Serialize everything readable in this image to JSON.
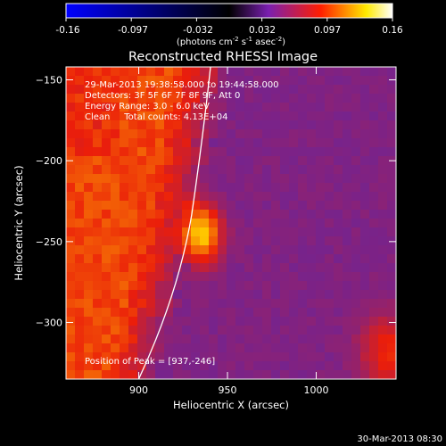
{
  "colorbar": {
    "ticks": [
      "-0.16",
      "-0.097",
      "-0.032",
      "0.032",
      "0.097",
      "0.16"
    ],
    "unit_text": "(photons cm",
    "unit_sup1": "-2",
    "unit_mid": " s",
    "unit_sup2": "-1",
    "unit_mid2": " asec",
    "unit_sup3": "-2",
    "unit_end": ")",
    "colors": [
      "#0000ff",
      "#000000",
      "#8b2fd1",
      "#ff1e00",
      "#ffea00",
      "#ffffff"
    ]
  },
  "title": "Reconstructed RHESSI Image",
  "annotations": {
    "time_range": "29-Mar-2013 19:38:58.000 to 19:44:58.000",
    "detectors": "Detectors: 3F 5F 6F 7F 8F 9F, Att 0",
    "energy": "Energy Range: 3.0 - 6.0 keV",
    "clean": "Clean     Total counts: 4.13E+04",
    "peak": "Position of Peak = [937,-246]"
  },
  "x_axis": {
    "label": "Heliocentric X (arcsec)",
    "ticks": [
      {
        "value": 900,
        "text": "900"
      },
      {
        "value": 950,
        "text": "950"
      },
      {
        "value": 1000,
        "text": "1000"
      }
    ],
    "range": [
      859,
      1045
    ]
  },
  "y_axis": {
    "label": "Heliocentric Y (arcsec)",
    "ticks": [
      {
        "value": -150,
        "text": "−150"
      },
      {
        "value": -200,
        "text": "−200"
      },
      {
        "value": -250,
        "text": "−250"
      },
      {
        "value": -300,
        "text": "−300"
      }
    ],
    "range": [
      -335,
      -142
    ]
  },
  "footer_date": "30-Mar-2013 08:30"
}
